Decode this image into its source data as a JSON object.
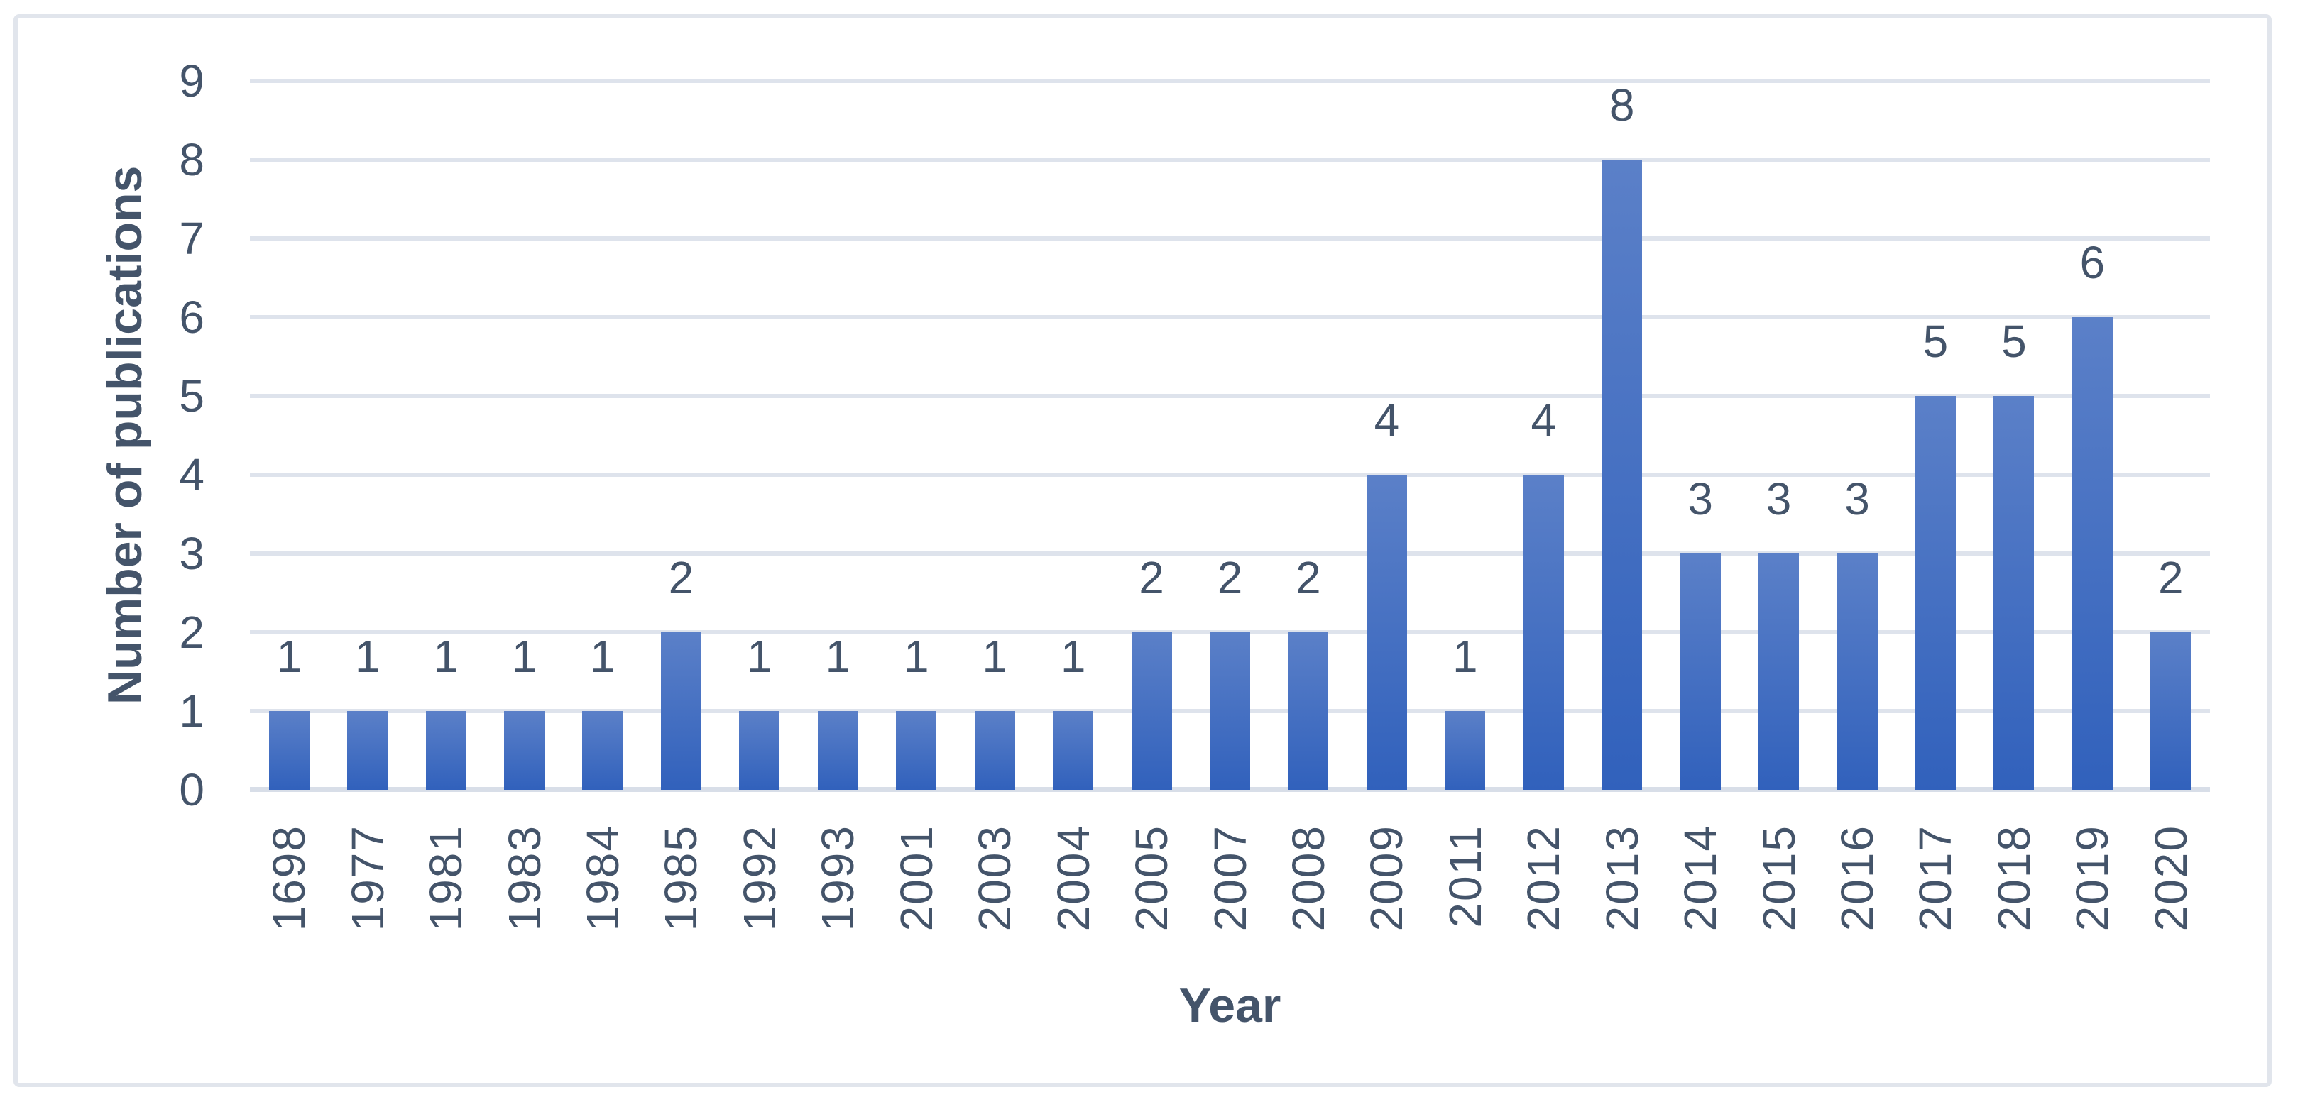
{
  "chart_data": {
    "type": "bar",
    "title": "",
    "xlabel": "Year",
    "ylabel": "Number of publications",
    "categories": [
      "1698",
      "1977",
      "1981",
      "1983",
      "1984",
      "1985",
      "1992",
      "1993",
      "2001",
      "2003",
      "2004",
      "2005",
      "2007",
      "2008",
      "2009",
      "2011",
      "2012",
      "2013",
      "2014",
      "2015",
      "2016",
      "2017",
      "2018",
      "2019",
      "2020"
    ],
    "values": [
      1,
      1,
      1,
      1,
      1,
      2,
      1,
      1,
      1,
      1,
      1,
      2,
      2,
      2,
      4,
      1,
      4,
      8,
      3,
      3,
      3,
      5,
      5,
      6,
      2
    ],
    "data_labels": [
      "1",
      "1",
      "1",
      "1",
      "1",
      "2",
      "1",
      "1",
      "1",
      "1",
      "1",
      "2",
      "2",
      "2",
      "4",
      "1",
      "4",
      "8",
      "3",
      "3",
      "3",
      "5",
      "5",
      "6",
      "2"
    ],
    "yticks": [
      "0",
      "1",
      "2",
      "3",
      "4",
      "5",
      "6",
      "7",
      "8",
      "9"
    ],
    "ylim": [
      0,
      9
    ],
    "grid": "horizontal",
    "legend": "none",
    "colors": {
      "bar_gradient_top": "#5b80c8",
      "bar_gradient_bottom": "#3161bc",
      "gridline": "#dee3ec",
      "axis_line": "#d8dee8",
      "text": "#44546a",
      "frame_border": "#e1e5ec",
      "background": "#ffffff"
    }
  }
}
